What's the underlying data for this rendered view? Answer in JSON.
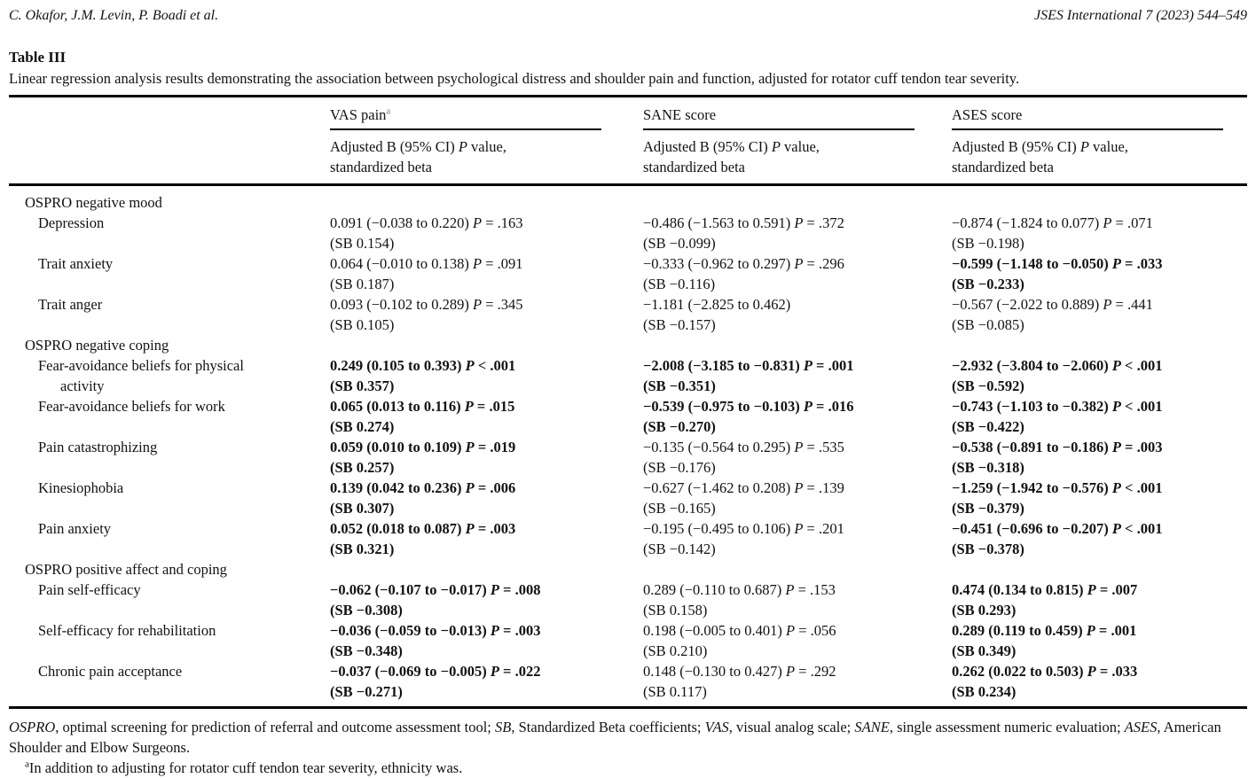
{
  "running_head": {
    "authors": "C. Okafor, J.M. Levin, P. Boadi et al.",
    "journal": "JSES International 7 (2023) 544–549"
  },
  "colors": {
    "footnote_link_blue": "#3b8bc0",
    "rule_black": "#000000",
    "text": "#121212"
  },
  "table": {
    "label": "Table III",
    "caption": "Linear regression analysis results demonstrating the association between psychological distress and shoulder pain and function, adjusted for rotator cuff tendon tear severity.",
    "col_headers": [
      {
        "title": "VAS pain",
        "footnote_mark": "a",
        "sub_pre": "Adjusted B (95% CI) ",
        "sub_p": "P",
        "sub_post": " value,",
        "sub_line2": "standardized beta"
      },
      {
        "title": "SANE score",
        "footnote_mark": "",
        "sub_pre": "Adjusted B (95% CI) ",
        "sub_p": "P",
        "sub_post": " value,",
        "sub_line2": "standardized beta"
      },
      {
        "title": "ASES score",
        "footnote_mark": "",
        "sub_pre": "Adjusted B (95% CI) ",
        "sub_p": "P",
        "sub_post": " value,",
        "sub_line2": "standardized beta"
      }
    ],
    "rows": [
      {
        "type": "section",
        "label": "OSPRO negative mood"
      },
      {
        "type": "item",
        "label": "Depression",
        "label2": "",
        "cells": [
          {
            "pre": "0.091 (−0.038 to 0.220) ",
            "p": "P",
            "post": " = .163",
            "sb": "(SB 0.154)",
            "bold": false
          },
          {
            "pre": "−0.486 (−1.563 to 0.591) ",
            "p": "P",
            "post": " = .372",
            "sb": "(SB −0.099)",
            "bold": false
          },
          {
            "pre": "−0.874 (−1.824 to 0.077) ",
            "p": "P",
            "post": " = .071",
            "sb": "(SB −0.198)",
            "bold": false
          }
        ]
      },
      {
        "type": "item",
        "label": "Trait anxiety",
        "label2": "",
        "cells": [
          {
            "pre": "0.064 (−0.010 to 0.138) ",
            "p": "P",
            "post": " = .091",
            "sb": "(SB 0.187)",
            "bold": false
          },
          {
            "pre": "−0.333 (−0.962 to 0.297) ",
            "p": "P",
            "post": " = .296",
            "sb": "(SB −0.116)",
            "bold": false
          },
          {
            "pre": "−0.599 (−1.148 to −0.050) ",
            "p": "P",
            "post": " = .033",
            "sb": "(SB −0.233)",
            "bold": true
          }
        ]
      },
      {
        "type": "item",
        "label": "Trait anger",
        "label2": "",
        "cells": [
          {
            "pre": "0.093 (−0.102 to 0.289) ",
            "p": "P",
            "post": " = .345",
            "sb": "(SB 0.105)",
            "bold": false
          },
          {
            "pre": "−1.181 (−2.825 to 0.462)",
            "p": "",
            "post": "",
            "sb": "(SB −0.157)",
            "bold": false
          },
          {
            "pre": "−0.567 (−2.022 to 0.889) ",
            "p": "P",
            "post": " = .441",
            "sb": "(SB −0.085)",
            "bold": false
          }
        ]
      },
      {
        "type": "section",
        "label": "OSPRO negative coping"
      },
      {
        "type": "item",
        "label": "Fear-avoidance beliefs for physical",
        "label2": "activity",
        "cells": [
          {
            "pre": "0.249 (0.105 to 0.393) ",
            "p": "P",
            "post": " < .001",
            "sb": "(SB 0.357)",
            "bold": true
          },
          {
            "pre": "−2.008 (−3.185 to −0.831) ",
            "p": "P",
            "post": " = .001",
            "sb": "(SB −0.351)",
            "bold": true
          },
          {
            "pre": "−2.932 (−3.804 to −2.060) ",
            "p": "P",
            "post": " < .001",
            "sb": "(SB −0.592)",
            "bold": true
          }
        ]
      },
      {
        "type": "item",
        "label": "Fear-avoidance beliefs for work",
        "label2": "",
        "cells": [
          {
            "pre": "0.065 (0.013 to 0.116) ",
            "p": "P",
            "post": " = .015",
            "sb": "(SB 0.274)",
            "bold": true
          },
          {
            "pre": "−0.539 (−0.975 to −0.103) ",
            "p": "P",
            "post": " = .016",
            "sb": "(SB −0.270)",
            "bold": true
          },
          {
            "pre": "−0.743 (−1.103 to −0.382) ",
            "p": "P",
            "post": " < .001",
            "sb": "(SB −0.422)",
            "bold": true
          }
        ]
      },
      {
        "type": "item",
        "label": "Pain catastrophizing",
        "label2": "",
        "cells": [
          {
            "pre": "0.059 (0.010 to 0.109) ",
            "p": "P",
            "post": " = .019",
            "sb": "(SB 0.257)",
            "bold": true
          },
          {
            "pre": "−0.135 (−0.564 to 0.295) ",
            "p": "P",
            "post": " = .535",
            "sb": "(SB −0.176)",
            "bold": false
          },
          {
            "pre": "−0.538 (−0.891 to −0.186) ",
            "p": "P",
            "post": " = .003",
            "sb": "(SB −0.318)",
            "bold": true
          }
        ]
      },
      {
        "type": "item",
        "label": "Kinesiophobia",
        "label2": "",
        "cells": [
          {
            "pre": "0.139 (0.042 to 0.236) ",
            "p": "P",
            "post": " = .006",
            "sb": "(SB 0.307)",
            "bold": true
          },
          {
            "pre": "−0.627 (−1.462 to 0.208) ",
            "p": "P",
            "post": " = .139",
            "sb": "(SB −0.165)",
            "bold": false
          },
          {
            "pre": "−1.259 (−1.942 to −0.576) ",
            "p": "P",
            "post": " < .001",
            "sb": "(SB −0.379)",
            "bold": true
          }
        ]
      },
      {
        "type": "item",
        "label": "Pain anxiety",
        "label2": "",
        "cells": [
          {
            "pre": "0.052 (0.018 to 0.087) ",
            "p": "P",
            "post": " = .003",
            "sb": "(SB 0.321)",
            "bold": true
          },
          {
            "pre": "−0.195 (−0.495 to 0.106) ",
            "p": "P",
            "post": " = .201",
            "sb": "(SB −0.142)",
            "bold": false
          },
          {
            "pre": "−0.451 (−0.696 to −0.207) ",
            "p": "P",
            "post": " < .001",
            "sb": "(SB −0.378)",
            "bold": true
          }
        ]
      },
      {
        "type": "section",
        "label": "OSPRO positive affect and coping"
      },
      {
        "type": "item",
        "label": "Pain self-efficacy",
        "label2": "",
        "cells": [
          {
            "pre": "−0.062 (−0.107 to −0.017) ",
            "p": "P",
            "post": " = .008",
            "sb": "(SB −0.308)",
            "bold": true
          },
          {
            "pre": "0.289 (−0.110 to 0.687) ",
            "p": "P",
            "post": " = .153",
            "sb": "(SB 0.158)",
            "bold": false
          },
          {
            "pre": "0.474 (0.134 to 0.815) ",
            "p": "P",
            "post": " = .007",
            "sb": "(SB 0.293)",
            "bold": true
          }
        ]
      },
      {
        "type": "item",
        "label": "Self-efficacy for rehabilitation",
        "label2": "",
        "cells": [
          {
            "pre": "−0.036 (−0.059 to −0.013) ",
            "p": "P",
            "post": " = .003",
            "sb": "(SB −0.348)",
            "bold": true
          },
          {
            "pre": "0.198 (−0.005 to 0.401) ",
            "p": "P",
            "post": " = .056",
            "sb": "(SB 0.210)",
            "bold": false
          },
          {
            "pre": "0.289 (0.119 to 0.459) ",
            "p": "P",
            "post": " = .001",
            "sb": "(SB 0.349)",
            "bold": true
          }
        ]
      },
      {
        "type": "item",
        "label": "Chronic pain acceptance",
        "label2": "",
        "cells": [
          {
            "pre": "−0.037 (−0.069 to −0.005) ",
            "p": "P",
            "post": " = .022",
            "sb": "(SB −0.271)",
            "bold": true
          },
          {
            "pre": "0.148 (−0.130 to 0.427) ",
            "p": "P",
            "post": " = .292",
            "sb": "(SB 0.117)",
            "bold": false
          },
          {
            "pre": "0.262 (0.022 to 0.503) ",
            "p": "P",
            "post": " = .033",
            "sb": "(SB 0.234)",
            "bold": true
          }
        ]
      }
    ]
  },
  "footnotes": {
    "abbrev_segments": [
      {
        "text": "OSPRO",
        "italic": true
      },
      {
        "text": ", optimal screening for prediction of referral and outcome assessment tool; ",
        "italic": false
      },
      {
        "text": "SB",
        "italic": true
      },
      {
        "text": ", Standardized Beta coefficients; ",
        "italic": false
      },
      {
        "text": "VAS",
        "italic": true
      },
      {
        "text": ", visual analog scale; ",
        "italic": false
      },
      {
        "text": "SANE",
        "italic": true
      },
      {
        "text": ", single assessment numeric evaluation; ",
        "italic": false
      },
      {
        "text": "ASES",
        "italic": true
      },
      {
        "text": ", American Shoulder and Elbow Surgeons.",
        "italic": false
      }
    ],
    "a_mark": "a",
    "a_text": "In addition to adjusting for rotator cuff tendon tear severity, ethnicity was."
  }
}
